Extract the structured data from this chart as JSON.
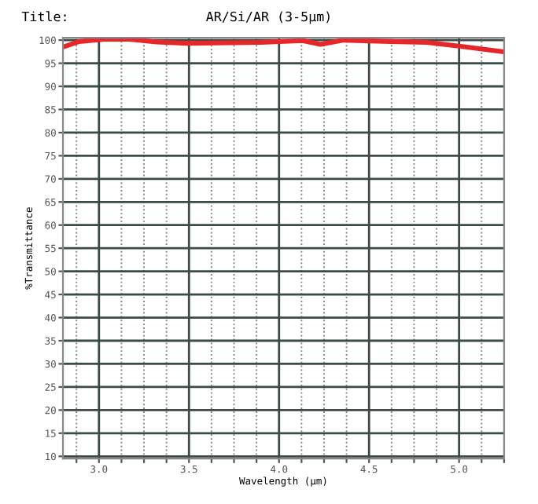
{
  "chart_data": {
    "type": "line",
    "title": "AR/Si/AR (3-5μm)",
    "xlabel": "Wavelength (μm)",
    "ylabel": "%Transmittance",
    "annotations": [
      "Title:"
    ],
    "x": [
      2.8,
      2.89,
      3.03,
      3.17,
      3.32,
      3.49,
      3.9,
      4.13,
      4.23,
      4.36,
      4.62,
      4.82,
      5.0,
      5.24
    ],
    "series": [
      {
        "color": "#e8262a",
        "values": [
          98.5,
          99.7,
          100.2,
          100.2,
          99.6,
          99.3,
          99.5,
          99.9,
          99.1,
          100.0,
          99.7,
          99.5,
          98.7,
          97.5
        ]
      }
    ],
    "xlim": [
      2.8,
      5.25
    ],
    "ylim": [
      9.5,
      100.5
    ],
    "xticks": [
      {
        "value": 2.875,
        "label": null
      },
      {
        "value": 3.0,
        "label": "3.0"
      },
      {
        "value": 3.125,
        "label": null
      },
      {
        "value": 3.25,
        "label": null
      },
      {
        "value": 3.375,
        "label": null
      },
      {
        "value": 3.5,
        "label": "3.5"
      },
      {
        "value": 3.625,
        "label": null
      },
      {
        "value": 3.75,
        "label": null
      },
      {
        "value": 3.875,
        "label": null
      },
      {
        "value": 4.0,
        "label": "4.0"
      },
      {
        "value": 4.125,
        "label": null
      },
      {
        "value": 4.25,
        "label": null
      },
      {
        "value": 4.375,
        "label": null
      },
      {
        "value": 4.5,
        "label": "4.5"
      },
      {
        "value": 4.625,
        "label": null
      },
      {
        "value": 4.75,
        "label": null
      },
      {
        "value": 4.875,
        "label": null
      },
      {
        "value": 5.0,
        "label": "5.0"
      },
      {
        "value": 5.125,
        "label": null
      },
      {
        "value": 5.25,
        "label": null
      }
    ],
    "yticks": [
      10,
      15,
      20,
      25,
      30,
      35,
      40,
      45,
      50,
      55,
      60,
      65,
      70,
      75,
      80,
      85,
      90,
      95,
      100
    ],
    "grid": true,
    "marker": "none",
    "line_style": "solid",
    "legend": false
  }
}
